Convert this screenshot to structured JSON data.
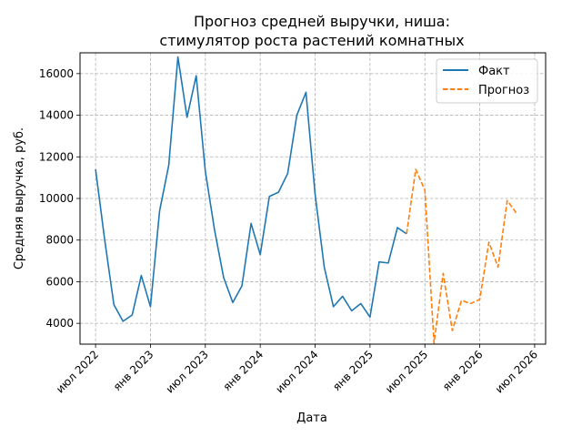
{
  "chart_data": {
    "type": "line",
    "title_line1": "Прогноз средней выручки, ниша:",
    "title_line2": "стимулятор роста растений комнатных",
    "xlabel": "Дата",
    "ylabel": "Средняя выручка, руб.",
    "ylim": [
      3000,
      17000
    ],
    "y_ticks": [
      {
        "value": 4000,
        "label": "4000"
      },
      {
        "value": 6000,
        "label": "6000"
      },
      {
        "value": 8000,
        "label": "8000"
      },
      {
        "value": 10000,
        "label": "10000"
      },
      {
        "value": 12000,
        "label": "12000"
      },
      {
        "value": 14000,
        "label": "14000"
      },
      {
        "value": 16000,
        "label": "16000"
      }
    ],
    "x_ticks": [
      {
        "date": "2022-07",
        "label": "июл 2022"
      },
      {
        "date": "2023-01",
        "label": "янв 2023"
      },
      {
        "date": "2023-07",
        "label": "июл 2023"
      },
      {
        "date": "2024-01",
        "label": "янв 2024"
      },
      {
        "date": "2024-07",
        "label": "июл 2024"
      },
      {
        "date": "2025-01",
        "label": "янв 2025"
      },
      {
        "date": "2025-07",
        "label": "июл 2025"
      },
      {
        "date": "2026-01",
        "label": "янв 2026"
      },
      {
        "date": "2026-07",
        "label": "июл 2026"
      }
    ],
    "grid": true,
    "legend_position": "top-right",
    "series": [
      {
        "name": "Факт",
        "style": "solid",
        "color": "#1f77b4",
        "points": [
          {
            "x": "2022-07",
            "y": 11400
          },
          {
            "x": "2022-08",
            "y": 8000
          },
          {
            "x": "2022-09",
            "y": 4900
          },
          {
            "x": "2022-10",
            "y": 4100
          },
          {
            "x": "2022-11",
            "y": 4400
          },
          {
            "x": "2022-12",
            "y": 6300
          },
          {
            "x": "2023-01",
            "y": 4800
          },
          {
            "x": "2023-02",
            "y": 9400
          },
          {
            "x": "2023-03",
            "y": 11600
          },
          {
            "x": "2023-04",
            "y": 16800
          },
          {
            "x": "2023-05",
            "y": 13900
          },
          {
            "x": "2023-06",
            "y": 15900
          },
          {
            "x": "2023-07",
            "y": 11300
          },
          {
            "x": "2023-08",
            "y": 8500
          },
          {
            "x": "2023-09",
            "y": 6200
          },
          {
            "x": "2023-10",
            "y": 5000
          },
          {
            "x": "2023-11",
            "y": 5800
          },
          {
            "x": "2023-12",
            "y": 8800
          },
          {
            "x": "2024-01",
            "y": 7300
          },
          {
            "x": "2024-02",
            "y": 10100
          },
          {
            "x": "2024-03",
            "y": 10300
          },
          {
            "x": "2024-04",
            "y": 11200
          },
          {
            "x": "2024-05",
            "y": 14000
          },
          {
            "x": "2024-06",
            "y": 15100
          },
          {
            "x": "2024-07",
            "y": 10200
          },
          {
            "x": "2024-08",
            "y": 6700
          },
          {
            "x": "2024-09",
            "y": 4800
          },
          {
            "x": "2024-10",
            "y": 5300
          },
          {
            "x": "2024-11",
            "y": 4600
          },
          {
            "x": "2024-12",
            "y": 4950
          },
          {
            "x": "2025-01",
            "y": 4300
          },
          {
            "x": "2025-02",
            "y": 6950
          },
          {
            "x": "2025-03",
            "y": 6900
          },
          {
            "x": "2025-04",
            "y": 8600
          },
          {
            "x": "2025-05",
            "y": 8300
          }
        ]
      },
      {
        "name": "Прогноз",
        "style": "dashed",
        "color": "#ff7f0e",
        "points": [
          {
            "x": "2025-05",
            "y": 8300
          },
          {
            "x": "2025-06",
            "y": 11400
          },
          {
            "x": "2025-07",
            "y": 10400
          },
          {
            "x": "2025-08",
            "y": 3050
          },
          {
            "x": "2025-09",
            "y": 6400
          },
          {
            "x": "2025-10",
            "y": 3650
          },
          {
            "x": "2025-11",
            "y": 5100
          },
          {
            "x": "2025-12",
            "y": 4950
          },
          {
            "x": "2026-01",
            "y": 5150
          },
          {
            "x": "2026-02",
            "y": 7900
          },
          {
            "x": "2026-03",
            "y": 6700
          },
          {
            "x": "2026-04",
            "y": 9900
          },
          {
            "x": "2026-05",
            "y": 9300
          }
        ]
      }
    ]
  }
}
